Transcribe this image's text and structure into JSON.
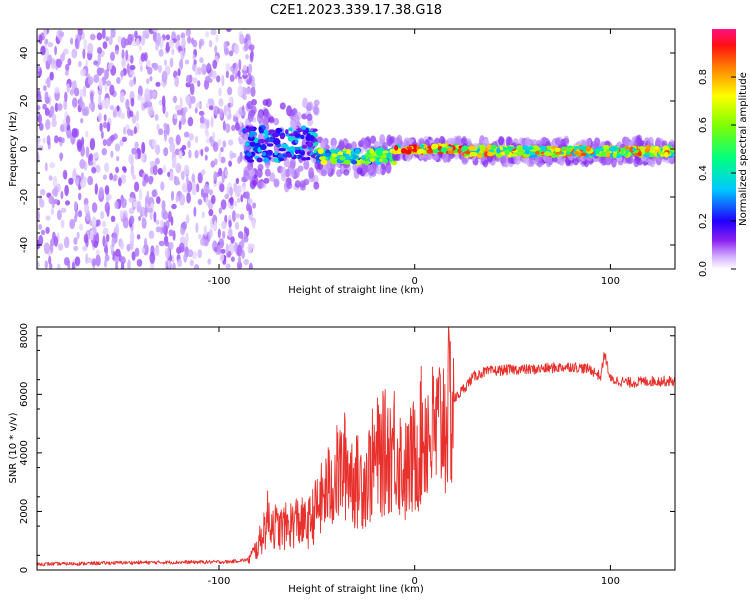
{
  "title": "C2E1.2023.339.17.38.G18",
  "colors": {
    "snr_line": "#e8302c",
    "axis": "#000000",
    "colormap": [
      "#ffffff",
      "#c9a7ff",
      "#7d1cf0",
      "#1f00ff",
      "#00c8ff",
      "#00ff7a",
      "#90ff00",
      "#ffff00",
      "#ff6a00",
      "#ff0000",
      "#ff1060"
    ]
  },
  "chart_data": [
    {
      "type": "heatmap",
      "name": "spectrogram",
      "xlabel": "Height of straight line (km)",
      "ylabel": "Frequency (Hz)",
      "xlim": [
        -193,
        133
      ],
      "ylim": [
        -50,
        50
      ],
      "x_ticks": [
        -100,
        0,
        100
      ],
      "x_tick_labels": [
        "-100",
        "0",
        "100"
      ],
      "y_ticks": [
        -40,
        -20,
        0,
        20,
        40
      ],
      "y_tick_labels": [
        "-40",
        "-20",
        "0",
        "20",
        "40"
      ],
      "colorbar": {
        "label": "Normalized spectral amplitude",
        "range": [
          0,
          1
        ],
        "ticks": [
          0.0,
          0.2,
          0.4,
          0.6,
          0.8
        ],
        "tick_labels": [
          "0.0",
          "0.2",
          "0.4",
          "0.6",
          "0.8"
        ]
      },
      "regions": [
        {
          "x_range": [
            -193,
            -82
          ],
          "freq_center": 0,
          "freq_halfwidth": 50,
          "peak_amplitude": 0.22,
          "texture": "speckle"
        },
        {
          "x_range": [
            -88,
            -50
          ],
          "freq_center": 2,
          "freq_halfwidth": 10,
          "peak_amplitude": 0.45,
          "texture": "band"
        },
        {
          "x_range": [
            -50,
            -10
          ],
          "freq_center": -3,
          "freq_halfwidth": 4,
          "peak_amplitude": 0.7,
          "texture": "band"
        },
        {
          "x_range": [
            -10,
            25
          ],
          "freq_center": 0,
          "freq_halfwidth": 2,
          "peak_amplitude": 0.95,
          "texture": "band"
        },
        {
          "x_range": [
            25,
            133
          ],
          "freq_center": -1,
          "freq_halfwidth": 2.5,
          "peak_amplitude": 0.85,
          "texture": "band"
        }
      ]
    },
    {
      "type": "line",
      "name": "snr",
      "xlabel": "Height of straight line (km)",
      "ylabel": "SNR (10 * v/v)",
      "xlim": [
        -193,
        133
      ],
      "ylim": [
        0,
        8300
      ],
      "x_ticks": [
        -100,
        0,
        100
      ],
      "x_tick_labels": [
        "-100",
        "0",
        "100"
      ],
      "y_ticks": [
        0,
        2000,
        4000,
        6000,
        8000
      ],
      "y_tick_labels": [
        "0",
        "2000",
        "4000",
        "6000",
        "8000"
      ],
      "series": [
        {
          "x": [
            -193,
            -170,
            -150,
            -130,
            -110,
            -95,
            -85,
            -80,
            -75,
            -70,
            -65,
            -60,
            -55,
            -50,
            -45,
            -40,
            -35,
            -30,
            -25,
            -20,
            -15,
            -10,
            -5,
            0,
            5,
            10,
            15,
            20,
            25,
            30,
            35,
            40,
            50,
            60,
            70,
            80,
            90,
            95,
            97,
            100,
            110,
            120,
            133
          ],
          "y": [
            200,
            220,
            250,
            260,
            270,
            280,
            350,
            800,
            1800,
            1400,
            1500,
            1700,
            1500,
            2100,
            2700,
            3200,
            3600,
            3000,
            3100,
            3800,
            4000,
            4300,
            3300,
            3900,
            4800,
            4600,
            5200,
            5800,
            6200,
            6600,
            6750,
            6800,
            6850,
            6850,
            6900,
            6950,
            6850,
            6600,
            7400,
            6500,
            6400,
            6450,
            6450
          ]
        }
      ]
    }
  ]
}
